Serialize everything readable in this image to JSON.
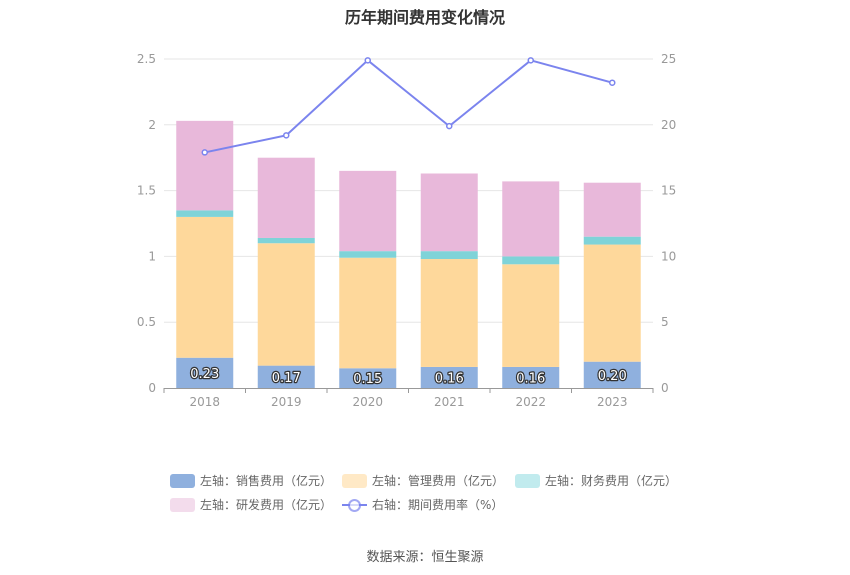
{
  "chart_data": {
    "type": "bar",
    "title": "历年期间费用变化情况",
    "categories": [
      "2018",
      "2019",
      "2020",
      "2021",
      "2022",
      "2023"
    ],
    "left_axis": {
      "ylim": [
        0,
        2.5
      ],
      "ticks": [
        "0",
        "0.5",
        "1",
        "1.5",
        "2",
        "2.5"
      ],
      "tick_values": [
        0,
        0.5,
        1,
        1.5,
        2,
        2.5
      ]
    },
    "right_axis": {
      "ylim": [
        0,
        25
      ],
      "ticks": [
        "0",
        "5",
        "10",
        "15",
        "20",
        "25"
      ],
      "tick_values": [
        0,
        5,
        10,
        15,
        20,
        25
      ]
    },
    "series": [
      {
        "name": "左轴：销售费用（亿元）",
        "type": "stacked-bar",
        "color": "#8fb0de",
        "legend_color": "#8fb0de",
        "values": [
          0.23,
          0.17,
          0.15,
          0.16,
          0.16,
          0.2
        ],
        "labels": [
          "0.23",
          "0.17",
          "0.15",
          "0.16",
          "0.16",
          "0.20"
        ]
      },
      {
        "name": "左轴：管理费用（亿元）",
        "type": "stacked-bar",
        "color": "#fed89b",
        "legend_color": "#ffe9c6",
        "values": [
          1.07,
          0.93,
          0.84,
          0.82,
          0.78,
          0.89
        ]
      },
      {
        "name": "左轴：财务费用（亿元）",
        "type": "stacked-bar",
        "color": "#7fd3d8",
        "legend_color": "#c1ebee",
        "values": [
          0.05,
          0.04,
          0.05,
          0.06,
          0.06,
          0.06
        ]
      },
      {
        "name": "左轴：研发费用（亿元）",
        "type": "stacked-bar",
        "color": "#e8b8da",
        "legend_color": "#f3dcec",
        "values": [
          0.68,
          0.61,
          0.61,
          0.59,
          0.57,
          0.41
        ]
      },
      {
        "name": "右轴：期间费用率（%）",
        "type": "line",
        "color": "#7b84ee",
        "axis": "right",
        "values": [
          17.9,
          19.2,
          24.9,
          19.9,
          24.9,
          23.2
        ]
      }
    ]
  },
  "source": "数据来源：恒生聚源"
}
